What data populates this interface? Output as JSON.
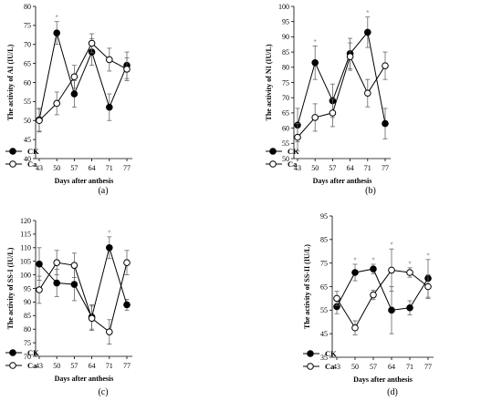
{
  "chart_data": [
    {
      "type": "line",
      "panel_label": "(a)",
      "ylabel": "The activity of AI (IU/L)",
      "xlabel": "Days after anthesis",
      "categories": [
        "43",
        "50",
        "57",
        "64",
        "71",
        "77"
      ],
      "ylim": [
        40,
        80
      ],
      "yticks": [
        40,
        45,
        50,
        55,
        60,
        65,
        70,
        75,
        80
      ],
      "series": [
        {
          "name": "CK",
          "marker": "filled",
          "values": [
            50.2,
            73.0,
            57.0,
            68.0,
            53.5,
            64.5
          ],
          "errors": [
            3.0,
            3.0,
            3.5,
            3.5,
            3.5,
            3.5
          ]
        },
        {
          "name": "Ca",
          "marker": "open",
          "values": [
            50.0,
            54.5,
            61.5,
            70.3,
            66.0,
            63.5
          ],
          "errors": [
            3.0,
            3.0,
            3.0,
            2.5,
            3.0,
            3.0
          ]
        }
      ],
      "annotations": [
        {
          "x": "50",
          "text": "*"
        }
      ]
    },
    {
      "type": "line",
      "panel_label": "(b)",
      "ylabel": "The activity of NI (IU/L)",
      "xlabel": "Days after anthesis",
      "categories": [
        "43",
        "50",
        "57",
        "64",
        "71",
        "77"
      ],
      "ylim": [
        50,
        100
      ],
      "yticks": [
        50,
        55,
        60,
        65,
        70,
        75,
        80,
        85,
        90,
        95,
        100
      ],
      "series": [
        {
          "name": "CK",
          "marker": "filled",
          "values": [
            61.0,
            81.5,
            69.0,
            84.5,
            91.5,
            61.5
          ],
          "errors": [
            5.5,
            5.5,
            5.5,
            5.0,
            5.0,
            5.0
          ]
        },
        {
          "name": "Ca",
          "marker": "open",
          "values": [
            57.0,
            63.5,
            65.0,
            83.5,
            71.5,
            80.5
          ],
          "errors": [
            4.5,
            4.5,
            4.5,
            4.5,
            4.5,
            4.5
          ]
        }
      ],
      "annotations": [
        {
          "x": "50",
          "text": "*"
        },
        {
          "x": "71",
          "text": "*"
        }
      ]
    },
    {
      "type": "line",
      "panel_label": "(c)",
      "ylabel": "The activity of SS-I (IU/L)",
      "xlabel": "Days after anthesis",
      "categories": [
        "43",
        "50",
        "57",
        "64",
        "71",
        "77"
      ],
      "ylim": [
        70,
        120
      ],
      "yticks": [
        70,
        75,
        80,
        85,
        90,
        95,
        100,
        105,
        110,
        115,
        120
      ],
      "series": [
        {
          "name": "CK",
          "marker": "filled",
          "values": [
            104.0,
            97.0,
            96.5,
            84.5,
            110.0,
            89.0
          ],
          "errors": [
            6.0,
            5.0,
            6.0,
            4.5,
            4.0,
            2.0
          ]
        },
        {
          "name": "Ca",
          "marker": "open",
          "values": [
            94.5,
            104.5,
            103.5,
            84.0,
            79.0,
            104.5
          ],
          "errors": [
            5.0,
            4.5,
            4.5,
            4.5,
            4.5,
            4.5
          ]
        }
      ],
      "annotations": [
        {
          "x": "71",
          "text": "*"
        }
      ]
    },
    {
      "type": "line",
      "panel_label": "(d)",
      "ylabel": "The activity of SS-II (IU/L)",
      "xlabel": "Days after anthesis",
      "categories": [
        "43",
        "50",
        "57",
        "64",
        "71",
        "77"
      ],
      "ylim": [
        35,
        95
      ],
      "yticks": [
        35,
        45,
        55,
        65,
        75,
        85,
        95
      ],
      "series": [
        {
          "name": "CK",
          "marker": "filled",
          "values": [
            56.5,
            71.0,
            72.5,
            55.0,
            56.0,
            68.5
          ],
          "errors": [
            3.0,
            3.5,
            2.0,
            10.0,
            3.0,
            8.0
          ]
        },
        {
          "name": "Ca",
          "marker": "open",
          "values": [
            60.0,
            47.5,
            61.5,
            72.0,
            71.0,
            65.0
          ],
          "errors": [
            3.0,
            3.0,
            2.0,
            9.0,
            2.0,
            5.0
          ]
        }
      ],
      "annotations": [
        {
          "x": "50",
          "text": "*"
        },
        {
          "x": "57",
          "text": "*"
        },
        {
          "x": "64",
          "text": "*"
        },
        {
          "x": "71",
          "text": "*"
        },
        {
          "x": "77",
          "text": "*"
        }
      ]
    }
  ]
}
